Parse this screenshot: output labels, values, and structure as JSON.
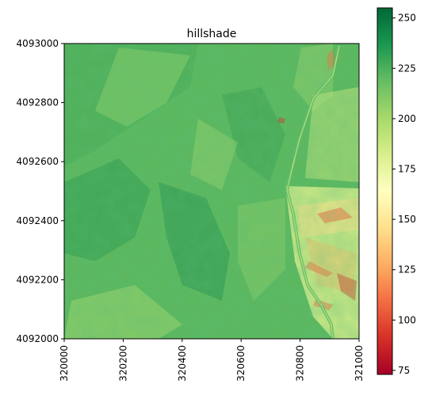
{
  "chart_data": {
    "type": "heatmap",
    "title": "hillshade",
    "xlabel": "",
    "ylabel": "",
    "xlim": [
      320000,
      321000
    ],
    "ylim": [
      4092000,
      4093000
    ],
    "x_ticks": [
      "320000",
      "320200",
      "320400",
      "320600",
      "320800",
      "321000"
    ],
    "y_ticks": [
      "4093000",
      "4092800",
      "4092600",
      "4092400",
      "4092200",
      "4092000"
    ],
    "x_tick_values": [
      320000,
      320200,
      320400,
      320600,
      320800,
      321000
    ],
    "y_tick_values": [
      4093000,
      4092800,
      4092600,
      4092400,
      4092200,
      4092000
    ],
    "colormap": "RdYlGn",
    "colorbar": {
      "range": [
        73,
        255
      ],
      "ticks": [
        "250",
        "225",
        "200",
        "175",
        "150",
        "125",
        "100",
        "75"
      ],
      "tick_values": [
        250,
        225,
        200,
        175,
        150,
        125,
        100,
        75
      ],
      "colors": [
        "#a50026",
        "#d73027",
        "#f46d43",
        "#fdae61",
        "#fee08b",
        "#ffffbf",
        "#d9ef8b",
        "#a6d96a",
        "#66bd63",
        "#1a9850",
        "#006837"
      ]
    },
    "grid": false
  }
}
